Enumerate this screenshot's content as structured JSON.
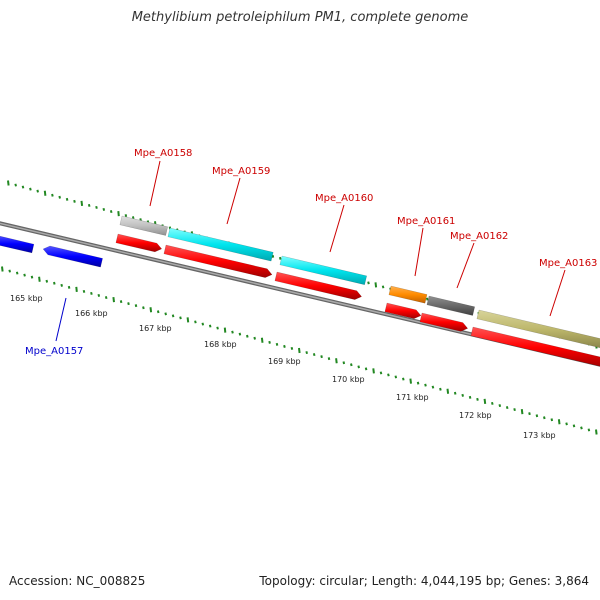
{
  "title": "Methylibium petroleiphilum PM1, complete genome",
  "accession": "Accession: NC_008825",
  "info": "Topology: circular; Length: 4,044,195 bp; Genes: 3,864",
  "colors": {
    "forward_label": "#cc0000",
    "reverse_label": "#0000cc",
    "cds": "#ff0000",
    "reverse_gene": "#0000ff",
    "tick": "#228822",
    "backbone": "#888888"
  },
  "tick_labels": [
    {
      "label": "165 kbp",
      "pos_kbp": 165
    },
    {
      "label": "166 kbp",
      "pos_kbp": 166
    },
    {
      "label": "167 kbp",
      "pos_kbp": 167
    },
    {
      "label": "168 kbp",
      "pos_kbp": 168
    },
    {
      "label": "169 kbp",
      "pos_kbp": 169
    },
    {
      "label": "170 kbp",
      "pos_kbp": 170
    },
    {
      "label": "171 kbp",
      "pos_kbp": 171
    },
    {
      "label": "172 kbp",
      "pos_kbp": 172
    },
    {
      "label": "173 kbp",
      "pos_kbp": 173
    }
  ],
  "gene_labels": [
    {
      "label": "Mpe_A0157",
      "strand": "reverse"
    },
    {
      "label": "Mpe_A0158",
      "strand": "forward"
    },
    {
      "label": "Mpe_A0159",
      "strand": "forward"
    },
    {
      "label": "Mpe_A0160",
      "strand": "forward"
    },
    {
      "label": "Mpe_A0161",
      "strand": "forward"
    },
    {
      "label": "Mpe_A0162",
      "strand": "forward"
    },
    {
      "label": "Mpe_A0163",
      "strand": "forward"
    }
  ],
  "feature_colors": {
    "gray": "#c0c0c0",
    "cyan": "#00e5ee",
    "orange": "#ff8c00",
    "dark_gray": "#696969",
    "khaki": "#bdb76b"
  }
}
